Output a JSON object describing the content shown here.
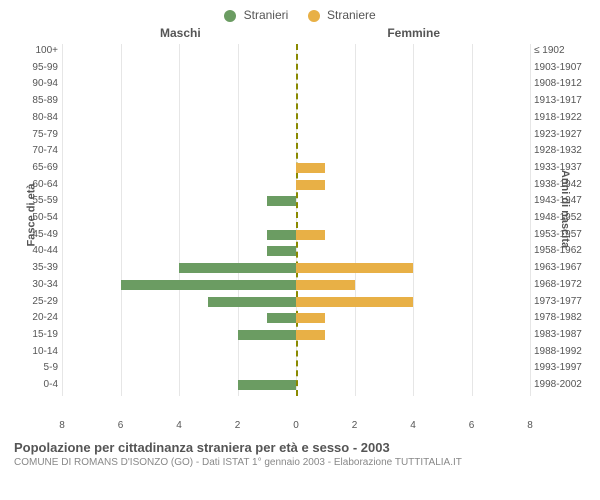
{
  "legend": {
    "male": {
      "label": "Stranieri",
      "color": "#6b9c62"
    },
    "female": {
      "label": "Straniere",
      "color": "#e8b046"
    }
  },
  "subtitles": {
    "left": "Maschi",
    "right": "Femmine"
  },
  "axis_titles": {
    "left": "Fasce di età",
    "right": "Anni di nascita"
  },
  "chart": {
    "type": "bar",
    "xlim": 8,
    "xtick_step": 2,
    "xticks": [
      8,
      6,
      4,
      2,
      0,
      2,
      4,
      6,
      8
    ],
    "background_color": "#ffffff",
    "grid_color": "#e6e6e6",
    "center_line_color": "#8a8a00",
    "bar_colors": {
      "male": "#6b9c62",
      "female": "#e8b046"
    },
    "row_height": 16.7,
    "bar_inner_height": 10,
    "age_bands": [
      "100+",
      "95-99",
      "90-94",
      "85-89",
      "80-84",
      "75-79",
      "70-74",
      "65-69",
      "60-64",
      "55-59",
      "50-54",
      "45-49",
      "40-44",
      "35-39",
      "30-34",
      "25-29",
      "20-24",
      "15-19",
      "10-14",
      "5-9",
      "0-4"
    ],
    "birth_bands": [
      "≤ 1902",
      "1903-1907",
      "1908-1912",
      "1913-1917",
      "1918-1922",
      "1923-1927",
      "1928-1932",
      "1933-1937",
      "1938-1942",
      "1943-1947",
      "1948-1952",
      "1953-1957",
      "1958-1962",
      "1963-1967",
      "1968-1972",
      "1973-1977",
      "1978-1982",
      "1983-1987",
      "1988-1992",
      "1993-1997",
      "1998-2002"
    ],
    "male_values": [
      0,
      0,
      0,
      0,
      0,
      0,
      0,
      0,
      0,
      1,
      0,
      1,
      1,
      4,
      6,
      3,
      1,
      2,
      0,
      0,
      2
    ],
    "female_values": [
      0,
      0,
      0,
      0,
      0,
      0,
      0,
      1,
      1,
      0,
      0,
      1,
      0,
      4,
      2,
      4,
      1,
      1,
      0,
      0,
      0
    ]
  },
  "footer": {
    "title": "Popolazione per cittadinanza straniera per età e sesso - 2003",
    "subtitle": "COMUNE DI ROMANS D'ISONZO (GO) - Dati ISTAT 1° gennaio 2003 - Elaborazione TUTTITALIA.IT"
  }
}
